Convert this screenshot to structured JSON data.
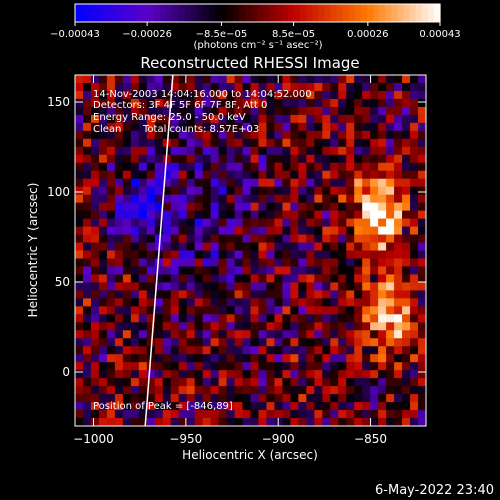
{
  "chart_data": {
    "type": "heatmap",
    "title": "Reconstructed RHESSI Image",
    "xlabel": "Heliocentric X (arcsec)",
    "ylabel": "Heliocentric Y (arcsec)",
    "xlim": [
      -1010,
      -820
    ],
    "ylim": [
      -30,
      165
    ],
    "x_ticks": [
      -1000,
      -950,
      -900,
      -850
    ],
    "x_tick_labels": [
      "−1000",
      "−950",
      "−900",
      "−850"
    ],
    "y_ticks": [
      0,
      50,
      100,
      150
    ],
    "y_tick_labels": [
      "0",
      "50",
      "100",
      "150"
    ],
    "colorbar": {
      "min": -0.00043,
      "max": 0.00043,
      "ticks": [
        -0.00043,
        -0.00026,
        -8.5e-05,
        8.5e-05,
        0.00026,
        0.00043
      ],
      "tick_labels": [
        "−0.00043",
        "−0.00026",
        "−8.5e−05",
        "8.5e−05",
        "0.00026",
        "0.00043"
      ],
      "unit_label": "(photons cm⁻² s⁻¹ asec⁻²)",
      "colors": [
        "#0000ff",
        "#5a00c8",
        "#000000",
        "#c00000",
        "#ff7800",
        "#ffffff"
      ]
    },
    "annotations": {
      "time_range": "14-Nov-2003 14:04:16.000 to 14:04:52.000",
      "detectors": "Detectors: 3F 4F 5F 6F 7F 8F, Att 0",
      "energy_range": "Energy Range: 25.0 - 50.0 keV",
      "method": "Clean",
      "total_counts": "Total counts: 8.57E+03",
      "peak": "Position of Peak = [-846,89]"
    },
    "peak_position": [
      -846,
      89
    ],
    "bright_sources": [
      {
        "x": -846,
        "y": 89,
        "relative_intensity": 1.0
      },
      {
        "x": -840,
        "y": 30,
        "relative_intensity": 0.8
      },
      {
        "x": -975,
        "y": 90,
        "relative_intensity": -0.6
      }
    ],
    "limb_line": {
      "x_at_ymin": -972,
      "x_at_ymax": -957
    }
  },
  "footer": {
    "date": "6-May-2022 23:40"
  }
}
